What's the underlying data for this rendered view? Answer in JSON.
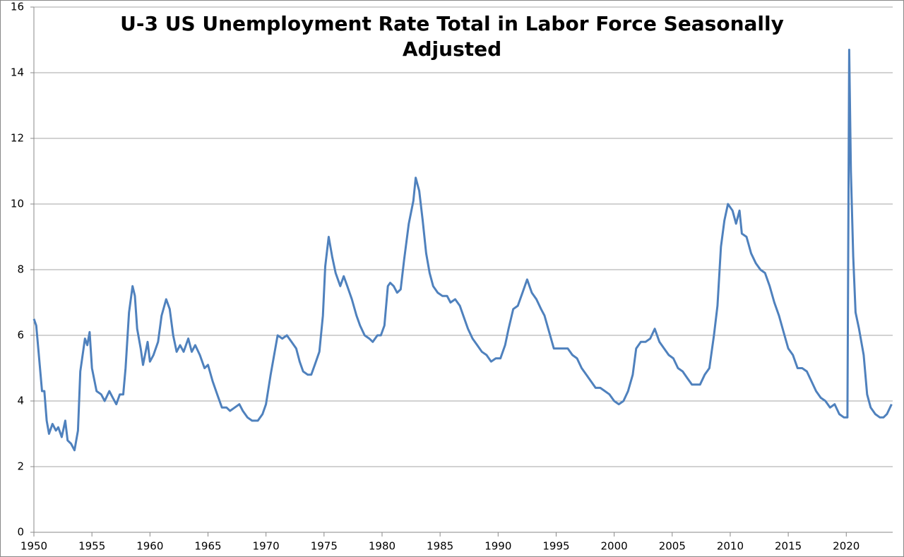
{
  "chart_data": {
    "type": "line",
    "title": [
      "U-3 US Unemployment Rate Total in Labor Force Seasonally",
      "Adjusted"
    ],
    "xlim": [
      1950,
      2024
    ],
    "xticks": [
      1950,
      1955,
      1960,
      1965,
      1970,
      1975,
      1980,
      1985,
      1990,
      1995,
      2000,
      2005,
      2010,
      2015,
      2020
    ],
    "ylim": [
      0,
      16
    ],
    "yticks": [
      0,
      2,
      4,
      6,
      8,
      10,
      12,
      14,
      16
    ],
    "grid": true,
    "series": [
      {
        "color": "#4f81bd",
        "x": [
          1950.0,
          1950.2,
          1950.4,
          1950.7,
          1950.9,
          1951.1,
          1951.3,
          1951.6,
          1951.9,
          1952.1,
          1952.4,
          1952.7,
          1952.9,
          1953.2,
          1953.5,
          1953.8,
          1954.0,
          1954.4,
          1954.6,
          1954.8,
          1955.0,
          1955.4,
          1955.8,
          1956.1,
          1956.5,
          1956.8,
          1957.1,
          1957.4,
          1957.7,
          1957.9,
          1958.2,
          1958.5,
          1958.7,
          1958.9,
          1959.2,
          1959.4,
          1959.8,
          1960.0,
          1960.3,
          1960.7,
          1961.0,
          1961.4,
          1961.7,
          1962.0,
          1962.3,
          1962.6,
          1962.9,
          1963.3,
          1963.6,
          1963.9,
          1964.3,
          1964.7,
          1965.0,
          1965.4,
          1965.8,
          1966.2,
          1966.6,
          1966.9,
          1967.3,
          1967.7,
          1968.0,
          1968.4,
          1968.8,
          1969.3,
          1969.7,
          1970.0,
          1970.4,
          1970.8,
          1971.0,
          1971.4,
          1971.8,
          1972.2,
          1972.6,
          1972.9,
          1973.2,
          1973.6,
          1973.9,
          1974.2,
          1974.6,
          1974.9,
          1975.1,
          1975.4,
          1975.7,
          1976.0,
          1976.4,
          1976.7,
          1977.0,
          1977.4,
          1977.8,
          1978.1,
          1978.5,
          1978.9,
          1979.2,
          1979.6,
          1979.9,
          1980.2,
          1980.5,
          1980.7,
          1981.0,
          1981.3,
          1981.6,
          1981.9,
          1982.3,
          1982.7,
          1982.9,
          1983.2,
          1983.5,
          1983.8,
          1984.1,
          1984.4,
          1984.8,
          1985.2,
          1985.6,
          1985.9,
          1986.3,
          1986.7,
          1987.0,
          1987.4,
          1987.8,
          1988.2,
          1988.6,
          1989.0,
          1989.4,
          1989.8,
          1990.2,
          1990.6,
          1990.9,
          1991.3,
          1991.7,
          1992.1,
          1992.5,
          1992.9,
          1993.3,
          1993.7,
          1994.0,
          1994.4,
          1994.8,
          1995.2,
          1995.6,
          1996.0,
          1996.4,
          1996.8,
          1997.2,
          1997.6,
          1998.0,
          1998.4,
          1998.8,
          1999.2,
          1999.6,
          2000.0,
          2000.4,
          2000.8,
          2001.2,
          2001.6,
          2001.9,
          2002.3,
          2002.7,
          2003.1,
          2003.5,
          2003.9,
          2004.3,
          2004.7,
          2005.1,
          2005.5,
          2005.9,
          2006.3,
          2006.7,
          2007.0,
          2007.4,
          2007.8,
          2008.2,
          2008.6,
          2008.9,
          2009.2,
          2009.5,
          2009.8,
          2010.2,
          2010.5,
          2010.8,
          2011.0,
          2011.4,
          2011.8,
          2012.2,
          2012.6,
          2013.0,
          2013.4,
          2013.8,
          2014.2,
          2014.6,
          2015.0,
          2015.4,
          2015.8,
          2016.2,
          2016.6,
          2017.0,
          2017.4,
          2017.8,
          2018.2,
          2018.6,
          2019.0,
          2019.4,
          2019.8,
          2020.1,
          2020.25,
          2020.4,
          2020.6,
          2020.8,
          2021.1,
          2021.5,
          2021.8,
          2022.1,
          2022.5,
          2022.9,
          2023.2,
          2023.5,
          2023.9
        ],
        "values": [
          6.5,
          6.3,
          5.5,
          4.3,
          4.3,
          3.4,
          3.0,
          3.3,
          3.1,
          3.2,
          2.9,
          3.4,
          2.8,
          2.7,
          2.5,
          3.1,
          4.9,
          5.9,
          5.7,
          6.1,
          5.0,
          4.3,
          4.2,
          4.0,
          4.3,
          4.1,
          3.9,
          4.2,
          4.2,
          5.0,
          6.7,
          7.5,
          7.2,
          6.2,
          5.6,
          5.1,
          5.8,
          5.2,
          5.4,
          5.8,
          6.6,
          7.1,
          6.8,
          6.0,
          5.5,
          5.7,
          5.5,
          5.9,
          5.5,
          5.7,
          5.4,
          5.0,
          5.1,
          4.6,
          4.2,
          3.8,
          3.8,
          3.7,
          3.8,
          3.9,
          3.7,
          3.5,
          3.4,
          3.4,
          3.6,
          3.9,
          4.8,
          5.6,
          6.0,
          5.9,
          6.0,
          5.8,
          5.6,
          5.2,
          4.9,
          4.8,
          4.8,
          5.1,
          5.5,
          6.6,
          8.1,
          9.0,
          8.4,
          7.9,
          7.5,
          7.8,
          7.5,
          7.1,
          6.6,
          6.3,
          6.0,
          5.9,
          5.8,
          6.0,
          6.0,
          6.3,
          7.5,
          7.6,
          7.5,
          7.3,
          7.4,
          8.3,
          9.4,
          10.1,
          10.8,
          10.4,
          9.5,
          8.5,
          7.9,
          7.5,
          7.3,
          7.2,
          7.2,
          7.0,
          7.1,
          6.9,
          6.6,
          6.2,
          5.9,
          5.7,
          5.5,
          5.4,
          5.2,
          5.3,
          5.3,
          5.7,
          6.2,
          6.8,
          6.9,
          7.3,
          7.7,
          7.3,
          7.1,
          6.8,
          6.6,
          6.1,
          5.6,
          5.6,
          5.6,
          5.6,
          5.4,
          5.3,
          5.0,
          4.8,
          4.6,
          4.4,
          4.4,
          4.3,
          4.2,
          4.0,
          3.9,
          4.0,
          4.3,
          4.8,
          5.6,
          5.8,
          5.8,
          5.9,
          6.2,
          5.8,
          5.6,
          5.4,
          5.3,
          5.0,
          4.9,
          4.7,
          4.5,
          4.5,
          4.5,
          4.8,
          5.0,
          6.0,
          6.9,
          8.7,
          9.5,
          10.0,
          9.8,
          9.4,
          9.8,
          9.1,
          9.0,
          8.5,
          8.2,
          8.0,
          7.9,
          7.5,
          7.0,
          6.6,
          6.1,
          5.6,
          5.4,
          5.0,
          5.0,
          4.9,
          4.6,
          4.3,
          4.1,
          4.0,
          3.8,
          3.9,
          3.6,
          3.5,
          3.5,
          14.7,
          11.0,
          8.4,
          6.7,
          6.2,
          5.4,
          4.2,
          3.8,
          3.6,
          3.5,
          3.5,
          3.6,
          3.9
        ]
      }
    ]
  }
}
